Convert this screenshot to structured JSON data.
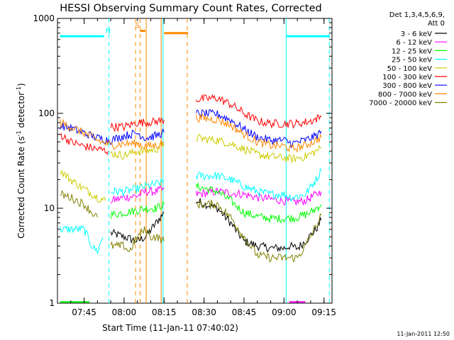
{
  "chart_data": {
    "type": "line",
    "title": "HESSI Observing Summary Count Rates, Corrected",
    "xlabel": "Start Time (11-Jan-11 07:40:02)",
    "ylabel_main": "Corrected Count Rate (s",
    "ylabel_sup1": "-1",
    "ylabel_mid": " detector",
    "ylabel_sup2": "-1",
    "ylabel_end": ")",
    "y_scale": "log",
    "ylim": [
      1,
      1000
    ],
    "xlim_minutes": [
      -5,
      98
    ],
    "x_ticks": [
      {
        "minute": 5,
        "label": "07:45"
      },
      {
        "minute": 20,
        "label": "08:00"
      },
      {
        "minute": 35,
        "label": "08:15"
      },
      {
        "minute": 50,
        "label": "08:30"
      },
      {
        "minute": 65,
        "label": "08:45"
      },
      {
        "minute": 80,
        "label": "09:00"
      },
      {
        "minute": 95,
        "label": "09:15"
      }
    ],
    "y_ticks": [
      {
        "value": 1,
        "label": "1"
      },
      {
        "value": 10,
        "label": "10"
      },
      {
        "value": 100,
        "label": "100"
      },
      {
        "value": 1000,
        "label": "1000"
      }
    ],
    "legend_header": [
      "Det 1,3,4,5,6,9,",
      "Att 0"
    ],
    "legend_placement": "right",
    "series": [
      {
        "name": "3 - 6 keV",
        "color": "#000000",
        "segments": [
          [
            [
              15,
              5.5
            ],
            [
              20,
              5
            ],
            [
              25,
              4.5
            ],
            [
              28,
              5
            ],
            [
              32,
              7
            ],
            [
              35,
              9
            ]
          ],
          [
            [
              47,
              12
            ],
            [
              55,
              10
            ],
            [
              60,
              7
            ],
            [
              65,
              4.5
            ],
            [
              70,
              4
            ],
            [
              75,
              3.8
            ],
            [
              80,
              3.8
            ],
            [
              82,
              4
            ],
            [
              85,
              3.8
            ],
            [
              88,
              4.5
            ],
            [
              92,
              6
            ],
            [
              94,
              7.5
            ]
          ]
        ]
      },
      {
        "name": "6 - 12 keV",
        "color": "#ff00ff",
        "segments": [
          [
            [
              15,
              12
            ],
            [
              20,
              13
            ],
            [
              25,
              13.5
            ],
            [
              28,
              15
            ],
            [
              32,
              15
            ],
            [
              35,
              16
            ]
          ],
          [
            [
              47,
              14
            ],
            [
              55,
              15
            ],
            [
              60,
              14.5
            ],
            [
              65,
              14
            ],
            [
              70,
              13
            ],
            [
              75,
              12.5
            ],
            [
              80,
              12
            ],
            [
              83,
              11.5
            ],
            [
              88,
              12
            ],
            [
              92,
              14
            ],
            [
              94,
              15
            ]
          ]
        ]
      },
      {
        "name": "12 - 25 keV",
        "color": "#00ff00",
        "segments": [
          [
            [
              15,
              8.5
            ],
            [
              20,
              9
            ],
            [
              25,
              9.5
            ],
            [
              28,
              10
            ],
            [
              32,
              10
            ],
            [
              35,
              11
            ]
          ],
          [
            [
              47,
              17
            ],
            [
              55,
              15
            ],
            [
              60,
              12
            ],
            [
              65,
              9
            ],
            [
              70,
              8.2
            ],
            [
              75,
              7.8
            ],
            [
              80,
              7.8
            ],
            [
              85,
              8
            ],
            [
              90,
              9
            ],
            [
              94,
              11
            ]
          ]
        ]
      },
      {
        "name": "25 - 50 keV",
        "color": "#00ffff",
        "segments": [
          [
            [
              -4,
              6
            ],
            [
              0,
              6
            ],
            [
              5,
              6
            ],
            [
              8,
              4
            ],
            [
              10,
              3.5
            ],
            [
              12,
              5
            ]
          ],
          [
            [
              15,
              15
            ],
            [
              20,
              15
            ],
            [
              25,
              16
            ],
            [
              28,
              17
            ],
            [
              32,
              18
            ],
            [
              35,
              19
            ]
          ],
          [
            [
              47,
              22
            ],
            [
              55,
              22
            ],
            [
              60,
              20
            ],
            [
              65,
              17
            ],
            [
              70,
              15
            ],
            [
              75,
              14
            ],
            [
              80,
              14
            ],
            [
              83,
              13
            ],
            [
              88,
              14
            ],
            [
              92,
              20
            ],
            [
              94,
              25
            ]
          ]
        ]
      },
      {
        "name": "50 - 100 keV",
        "color": "#cccc00",
        "segments": [
          [
            [
              -4,
              25
            ],
            [
              0,
              20
            ],
            [
              5,
              16
            ],
            [
              10,
              13
            ],
            [
              13,
              12
            ]
          ],
          [
            [
              15,
              38
            ],
            [
              20,
              36
            ],
            [
              25,
              40
            ],
            [
              28,
              40
            ],
            [
              32,
              42
            ],
            [
              35,
              47
            ]
          ],
          [
            [
              47,
              55
            ],
            [
              55,
              52
            ],
            [
              60,
              48
            ],
            [
              65,
              42
            ],
            [
              70,
              37
            ],
            [
              75,
              35
            ],
            [
              80,
              34
            ],
            [
              83,
              33
            ],
            [
              88,
              35
            ],
            [
              92,
              40
            ],
            [
              94,
              43
            ]
          ]
        ]
      },
      {
        "name": "100 - 300 keV",
        "color": "#ff0000",
        "segments": [
          [
            [
              -4,
              60
            ],
            [
              0,
              50
            ],
            [
              5,
              45
            ],
            [
              10,
              42
            ],
            [
              14,
              40
            ]
          ],
          [
            [
              15,
              72
            ],
            [
              20,
              72
            ],
            [
              25,
              80
            ],
            [
              28,
              80
            ],
            [
              32,
              82
            ],
            [
              35,
              85
            ]
          ],
          [
            [
              47,
              140
            ],
            [
              55,
              145
            ],
            [
              60,
              125
            ],
            [
              65,
              100
            ],
            [
              70,
              83
            ],
            [
              75,
              78
            ],
            [
              80,
              78
            ],
            [
              85,
              78
            ],
            [
              90,
              83
            ],
            [
              94,
              92
            ]
          ]
        ]
      },
      {
        "name": "300 - 800 keV",
        "color": "#0000ff",
        "segments": [
          [
            [
              -4,
              75
            ],
            [
              0,
              70
            ],
            [
              5,
              62
            ],
            [
              10,
              55
            ],
            [
              15,
              52
            ],
            [
              20,
              58
            ],
            [
              25,
              62
            ],
            [
              28,
              55
            ],
            [
              32,
              58
            ],
            [
              35,
              63
            ]
          ],
          [
            [
              47,
              100
            ],
            [
              55,
              98
            ],
            [
              60,
              85
            ],
            [
              65,
              68
            ],
            [
              70,
              56
            ],
            [
              75,
              52
            ],
            [
              80,
              52
            ],
            [
              83,
              48
            ],
            [
              88,
              52
            ],
            [
              92,
              58
            ],
            [
              94,
              65
            ]
          ]
        ]
      },
      {
        "name": "800 - 7000 keV",
        "color": "#ff8800",
        "segments": [
          [
            [
              -4,
              80
            ],
            [
              0,
              72
            ],
            [
              5,
              62
            ],
            [
              10,
              52
            ],
            [
              15,
              46
            ],
            [
              20,
              48
            ],
            [
              25,
              48
            ],
            [
              28,
              45
            ],
            [
              32,
              46
            ],
            [
              35,
              50
            ]
          ],
          [
            [
              47,
              90
            ],
            [
              55,
              86
            ],
            [
              60,
              75
            ],
            [
              65,
              60
            ],
            [
              70,
              50
            ],
            [
              75,
              46
            ],
            [
              80,
              45
            ],
            [
              83,
              42
            ],
            [
              88,
              46
            ],
            [
              92,
              52
            ],
            [
              94,
              56
            ]
          ]
        ]
      },
      {
        "name": "7000 - 20000 keV",
        "color": "#808000",
        "segments": [
          [
            [
              -4,
              14
            ],
            [
              0,
              13
            ],
            [
              5,
              11
            ],
            [
              8,
              9
            ],
            [
              10,
              8
            ]
          ],
          [
            [
              15,
              4
            ],
            [
              20,
              4
            ],
            [
              22,
              3.5
            ],
            [
              25,
              5
            ],
            [
              28,
              6
            ],
            [
              30,
              5
            ],
            [
              32,
              5
            ],
            [
              35,
              4.5
            ]
          ],
          [
            [
              47,
              11
            ],
            [
              55,
              11
            ],
            [
              60,
              8
            ],
            [
              65,
              5
            ],
            [
              70,
              3.2
            ],
            [
              75,
              3
            ],
            [
              80,
              3
            ],
            [
              85,
              3
            ],
            [
              88,
              4
            ],
            [
              92,
              6.5
            ],
            [
              94,
              8.5
            ]
          ]
        ]
      }
    ],
    "flag_markers": [
      {
        "label": "N",
        "color": "#00ffff",
        "x_minute": 14
      },
      {
        "label": "S",
        "color": "#ff8800",
        "x_minute": 25
      }
    ],
    "flag_bars": [
      {
        "color": "#00ffff",
        "x_from": -4,
        "x_to": 12.5,
        "y": 650,
        "dash": false
      },
      {
        "color": "#00ffff",
        "x_from": 81,
        "x_to": 97,
        "y": 650,
        "dash": false
      },
      {
        "color": "#ff8800",
        "x_from": 26,
        "x_to": 28,
        "y": 740,
        "dash": false
      },
      {
        "color": "#ff8800",
        "x_from": 35,
        "x_to": 44,
        "y": 700,
        "dash": false
      }
    ],
    "vlines": [
      {
        "x_minute": 14.3,
        "color": "#00ffff",
        "dash": true
      },
      {
        "x_minute": 24.3,
        "color": "#ff8800",
        "dash": true
      },
      {
        "x_minute": 26.0,
        "color": "#ff8800",
        "dash": true
      },
      {
        "x_minute": 28.3,
        "color": "#ff8800",
        "dash": false
      },
      {
        "x_minute": 33.9,
        "color": "#ff8800",
        "dash": false
      },
      {
        "x_minute": 34.6,
        "color": "#00ffff",
        "dash": false
      },
      {
        "x_minute": 43.7,
        "color": "#ff8800",
        "dash": true
      },
      {
        "x_minute": 80.8,
        "color": "#00ffff",
        "dash": false
      },
      {
        "x_minute": 97.0,
        "color": "#00ffff",
        "dash": true
      }
    ],
    "bottom_marks": [
      {
        "color": "#00ff00",
        "x_from": -4,
        "x_to": 7,
        "y": 1.03
      },
      {
        "color": "#ff00ff",
        "x_from": 82,
        "x_to": 88,
        "y": 1.03
      }
    ],
    "footer_date": "11-Jan-2011 12:50"
  }
}
